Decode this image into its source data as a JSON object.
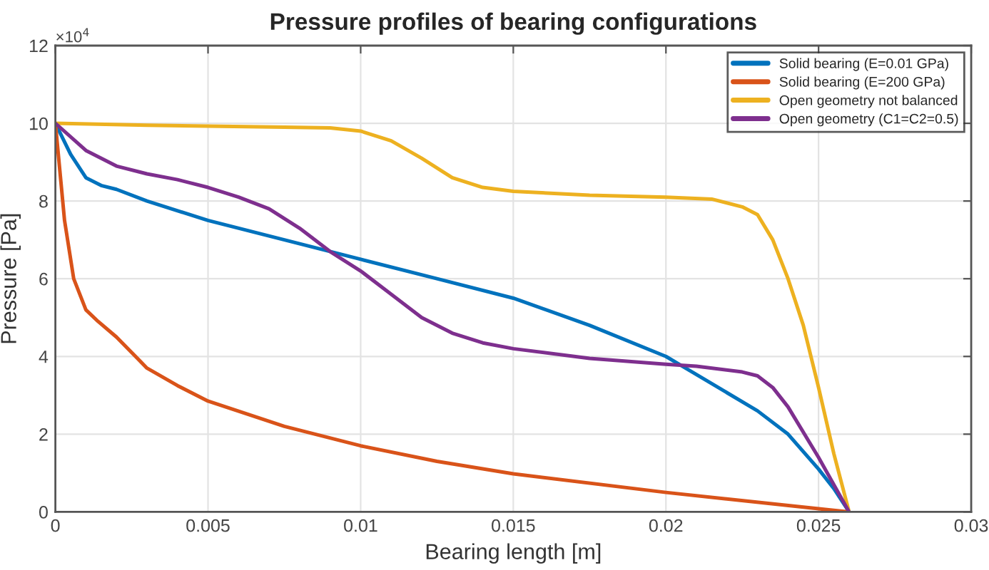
{
  "chart_data": {
    "type": "line",
    "title": "Pressure profiles of bearing configurations",
    "xlabel": "Bearing length [m]",
    "ylabel": "Pressure [Pa]",
    "annotations": [
      "×10$^{4}$"
    ],
    "xlim": [
      0,
      0.03
    ],
    "xticks": [
      0,
      0.005,
      0.01,
      0.015,
      0.02,
      0.025,
      0.03
    ],
    "ylim": [
      0,
      12
    ],
    "yticks": [
      0,
      2,
      4,
      6,
      8,
      10,
      12
    ],
    "grid": true,
    "legend": "top right",
    "line_style": "solid",
    "series": [
      {
        "name": "Solid bearing (E=0.01 GPa)",
        "color": "#0072bd",
        "x": [
          0,
          0.0005,
          0.001,
          0.0015,
          0.002,
          0.003,
          0.005,
          0.0075,
          0.01,
          0.0125,
          0.015,
          0.0175,
          0.02,
          0.0215,
          0.023,
          0.024,
          0.025,
          0.0255,
          0.026
        ],
        "values": [
          10,
          9.2,
          8.6,
          8.4,
          8.3,
          8.0,
          7.5,
          7.0,
          6.5,
          6.0,
          5.5,
          4.8,
          4.0,
          3.3,
          2.6,
          2.0,
          1.1,
          0.6,
          0
        ]
      },
      {
        "name": "Solid bearing (E=200 GPa)",
        "color": "#d95319",
        "x": [
          0,
          0.0003,
          0.0006,
          0.001,
          0.0014,
          0.002,
          0.003,
          0.004,
          0.005,
          0.0075,
          0.01,
          0.0125,
          0.015,
          0.02,
          0.025,
          0.026
        ],
        "values": [
          10,
          7.5,
          6.0,
          5.2,
          4.9,
          4.5,
          3.7,
          3.25,
          2.85,
          2.2,
          1.7,
          1.3,
          0.98,
          0.5,
          0.08,
          0
        ]
      },
      {
        "name": "Open geometry not balanced",
        "color": "#edb120",
        "x": [
          0,
          0.003,
          0.005,
          0.0075,
          0.009,
          0.01,
          0.011,
          0.012,
          0.013,
          0.014,
          0.015,
          0.0175,
          0.02,
          0.0215,
          0.0225,
          0.023,
          0.0235,
          0.024,
          0.0245,
          0.025,
          0.0255,
          0.026
        ],
        "values": [
          10,
          9.95,
          9.93,
          9.9,
          9.88,
          9.8,
          9.55,
          9.1,
          8.6,
          8.35,
          8.25,
          8.15,
          8.1,
          8.05,
          7.85,
          7.65,
          7.0,
          6.0,
          4.8,
          3.2,
          1.5,
          0
        ]
      },
      {
        "name": "Open geometry (C1=C2=0.5)",
        "color": "#7e2f8e",
        "x": [
          0,
          0.001,
          0.002,
          0.003,
          0.004,
          0.005,
          0.006,
          0.007,
          0.008,
          0.009,
          0.01,
          0.011,
          0.012,
          0.013,
          0.014,
          0.015,
          0.0175,
          0.02,
          0.021,
          0.0225,
          0.023,
          0.0235,
          0.024,
          0.025,
          0.026
        ],
        "values": [
          10,
          9.3,
          8.9,
          8.7,
          8.55,
          8.35,
          8.1,
          7.8,
          7.3,
          6.7,
          6.2,
          5.6,
          5.0,
          4.6,
          4.35,
          4.2,
          3.95,
          3.8,
          3.75,
          3.6,
          3.5,
          3.2,
          2.7,
          1.4,
          0
        ]
      }
    ]
  }
}
